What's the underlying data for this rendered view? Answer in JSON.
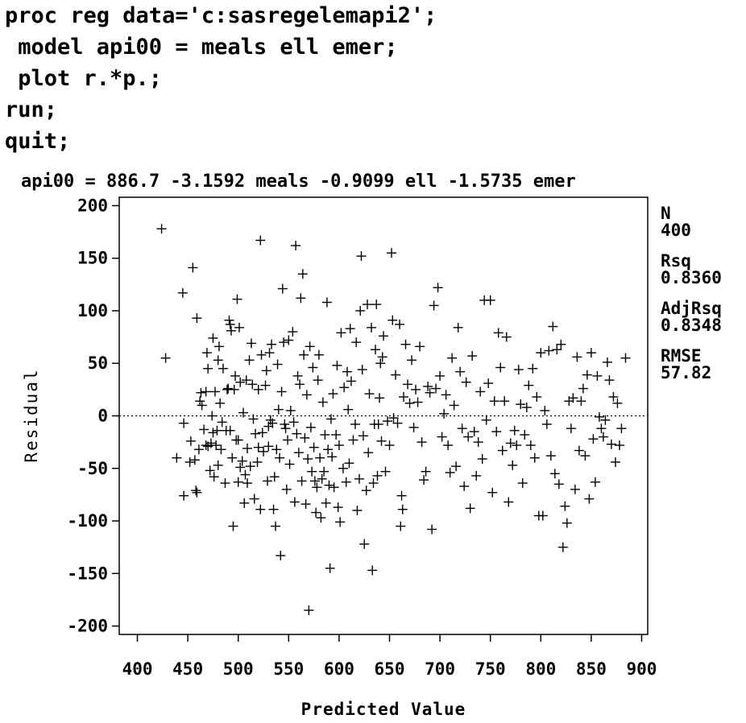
{
  "code_lines": [
    "proc reg data='c:sasregelemapi2';",
    " model api00 = meals ell emer;",
    " plot r.*p.;",
    "run;",
    "quit;"
  ],
  "chart_data": {
    "type": "scatter",
    "title": "api00 = 886.7 -3.1592 meals -0.9099 ell -1.5735 emer",
    "xlabel": "Predicted Value",
    "ylabel": "Residual",
    "xlim": [
      382,
      906
    ],
    "ylim": [
      -208,
      208
    ],
    "xticks": [
      400,
      450,
      500,
      550,
      600,
      650,
      700,
      750,
      800,
      850,
      900
    ],
    "yticks": [
      200,
      150,
      100,
      50,
      0,
      -50,
      -100,
      -150,
      -200
    ],
    "reference_line_y": 0,
    "grid": false,
    "stats": [
      {
        "label": "N",
        "value": "400"
      },
      {
        "label": "Rsq",
        "value": "0.8360"
      },
      {
        "label": "AdjRsq",
        "value": "0.8348"
      },
      {
        "label": "RMSE",
        "value": "57.82"
      }
    ],
    "points": [
      [
        424,
        178
      ],
      [
        428,
        55
      ],
      [
        439,
        -40
      ],
      [
        445,
        117
      ],
      [
        446,
        -7
      ],
      [
        446,
        -76
      ],
      [
        452,
        -44
      ],
      [
        453,
        -24
      ],
      [
        455,
        141
      ],
      [
        457,
        -42
      ],
      [
        458,
        -71
      ],
      [
        459,
        -73
      ],
      [
        459,
        93
      ],
      [
        461,
        -32
      ],
      [
        462,
        14
      ],
      [
        463,
        22
      ],
      [
        464,
        10
      ],
      [
        466,
        -13
      ],
      [
        468,
        23
      ],
      [
        468,
        -28
      ],
      [
        469,
        60
      ],
      [
        470,
        45
      ],
      [
        470,
        -29
      ],
      [
        472,
        -52
      ],
      [
        473,
        -26
      ],
      [
        474,
        0
      ],
      [
        475,
        -16
      ],
      [
        475,
        74
      ],
      [
        476,
        -58
      ],
      [
        477,
        23
      ],
      [
        478,
        -28
      ],
      [
        479,
        -14
      ],
      [
        480,
        -47
      ],
      [
        480,
        53
      ],
      [
        481,
        66
      ],
      [
        482,
        12
      ],
      [
        483,
        -32
      ],
      [
        484,
        -6
      ],
      [
        485,
        45
      ],
      [
        487,
        -64
      ],
      [
        488,
        -14
      ],
      [
        489,
        25
      ],
      [
        490,
        26
      ],
      [
        491,
        91
      ],
      [
        492,
        -14
      ],
      [
        492,
        87
      ],
      [
        493,
        81
      ],
      [
        494,
        -40
      ],
      [
        495,
        -105
      ],
      [
        496,
        25
      ],
      [
        497,
        38
      ],
      [
        498,
        -23
      ],
      [
        499,
        111
      ],
      [
        500,
        -63
      ],
      [
        500,
        -23
      ],
      [
        501,
        84
      ],
      [
        502,
        -49
      ],
      [
        502,
        32
      ],
      [
        504,
        -43
      ],
      [
        505,
        3
      ],
      [
        506,
        -83
      ],
      [
        507,
        -56
      ],
      [
        508,
        34
      ],
      [
        509,
        -31
      ],
      [
        509,
        -64
      ],
      [
        511,
        53
      ],
      [
        512,
        -48
      ],
      [
        513,
        69
      ],
      [
        514,
        30
      ],
      [
        515,
        -3
      ],
      [
        516,
        -79
      ],
      [
        517,
        -17
      ],
      [
        519,
        -44
      ],
      [
        520,
        25
      ],
      [
        520,
        -30
      ],
      [
        522,
        -89
      ],
      [
        522,
        167
      ],
      [
        523,
        58
      ],
      [
        524,
        -16
      ],
      [
        525,
        -34
      ],
      [
        527,
        29
      ],
      [
        528,
        43
      ],
      [
        529,
        -62
      ],
      [
        530,
        -10
      ],
      [
        530,
        -29
      ],
      [
        531,
        60
      ],
      [
        532,
        -4
      ],
      [
        533,
        68
      ],
      [
        534,
        -7
      ],
      [
        535,
        -89
      ],
      [
        536,
        -58
      ],
      [
        537,
        -105
      ],
      [
        538,
        -32
      ],
      [
        539,
        49
      ],
      [
        540,
        6
      ],
      [
        541,
        -40
      ],
      [
        542,
        -133
      ],
      [
        543,
        23
      ],
      [
        544,
        121
      ],
      [
        545,
        70
      ],
      [
        546,
        -8
      ],
      [
        547,
        -12
      ],
      [
        548,
        -70
      ],
      [
        549,
        -23
      ],
      [
        550,
        72
      ],
      [
        551,
        -46
      ],
      [
        552,
        5
      ],
      [
        554,
        80
      ],
      [
        555,
        -6
      ],
      [
        556,
        -82
      ],
      [
        557,
        162
      ],
      [
        558,
        -17
      ],
      [
        559,
        38
      ],
      [
        560,
        -35
      ],
      [
        561,
        30
      ],
      [
        562,
        112
      ],
      [
        563,
        -62
      ],
      [
        564,
        135
      ],
      [
        565,
        58
      ],
      [
        566,
        -21
      ],
      [
        567,
        -84
      ],
      [
        568,
        20
      ],
      [
        569,
        -41
      ],
      [
        570,
        -185
      ],
      [
        571,
        66
      ],
      [
        572,
        -11
      ],
      [
        573,
        -53
      ],
      [
        574,
        46
      ],
      [
        575,
        -30
      ],
      [
        576,
        -62
      ],
      [
        577,
        -92
      ],
      [
        578,
        -68
      ],
      [
        579,
        34
      ],
      [
        580,
        58
      ],
      [
        581,
        -40
      ],
      [
        582,
        -97
      ],
      [
        583,
        -60
      ],
      [
        584,
        13
      ],
      [
        585,
        -53
      ],
      [
        586,
        -18
      ],
      [
        587,
        -83
      ],
      [
        588,
        108
      ],
      [
        589,
        -32
      ],
      [
        590,
        -66
      ],
      [
        591,
        -145
      ],
      [
        592,
        -3
      ],
      [
        593,
        -39
      ],
      [
        594,
        21
      ],
      [
        595,
        -68
      ],
      [
        597,
        -18
      ],
      [
        598,
        48
      ],
      [
        599,
        -87
      ],
      [
        600,
        -28
      ],
      [
        601,
        -101
      ],
      [
        602,
        79
      ],
      [
        604,
        -50
      ],
      [
        605,
        27
      ],
      [
        607,
        -63
      ],
      [
        608,
        42
      ],
      [
        609,
        6
      ],
      [
        610,
        -45
      ],
      [
        611,
        83
      ],
      [
        612,
        33
      ],
      [
        614,
        -23
      ],
      [
        616,
        -8
      ],
      [
        617,
        70
      ],
      [
        618,
        -90
      ],
      [
        620,
        -60
      ],
      [
        621,
        100
      ],
      [
        622,
        152
      ],
      [
        623,
        44
      ],
      [
        624,
        -19
      ],
      [
        625,
        -122
      ],
      [
        627,
        -71
      ],
      [
        628,
        106
      ],
      [
        629,
        -35
      ],
      [
        630,
        21
      ],
      [
        632,
        84
      ],
      [
        633,
        -147
      ],
      [
        634,
        -64
      ],
      [
        635,
        -8
      ],
      [
        636,
        63
      ],
      [
        637,
        106
      ],
      [
        638,
        -57
      ],
      [
        639,
        -8
      ],
      [
        640,
        17
      ],
      [
        641,
        50
      ],
      [
        642,
        -24
      ],
      [
        643,
        56
      ],
      [
        644,
        76
      ],
      [
        646,
        -53
      ],
      [
        648,
        -5
      ],
      [
        650,
        -28
      ],
      [
        652,
        155
      ],
      [
        653,
        91
      ],
      [
        654,
        -2
      ],
      [
        656,
        39
      ],
      [
        658,
        -7
      ],
      [
        660,
        87
      ],
      [
        661,
        -105
      ],
      [
        662,
        -76
      ],
      [
        663,
        -89
      ],
      [
        664,
        18
      ],
      [
        666,
        68
      ],
      [
        668,
        30
      ],
      [
        670,
        12
      ],
      [
        672,
        53
      ],
      [
        674,
        -11
      ],
      [
        676,
        25
      ],
      [
        678,
        13
      ],
      [
        680,
        66
      ],
      [
        682,
        -25
      ],
      [
        684,
        -61
      ],
      [
        686,
        -53
      ],
      [
        688,
        28
      ],
      [
        690,
        22
      ],
      [
        692,
        -108
      ],
      [
        694,
        105
      ],
      [
        696,
        26
      ],
      [
        698,
        122
      ],
      [
        700,
        38
      ],
      [
        702,
        -20
      ],
      [
        704,
        2
      ],
      [
        706,
        20
      ],
      [
        708,
        -28
      ],
      [
        710,
        -54
      ],
      [
        712,
        55
      ],
      [
        714,
        10
      ],
      [
        716,
        -48
      ],
      [
        718,
        84
      ],
      [
        720,
        42
      ],
      [
        722,
        -12
      ],
      [
        724,
        -67
      ],
      [
        726,
        32
      ],
      [
        728,
        -20
      ],
      [
        730,
        -88
      ],
      [
        732,
        57
      ],
      [
        734,
        -15
      ],
      [
        736,
        -57
      ],
      [
        738,
        -25
      ],
      [
        740,
        23
      ],
      [
        742,
        -41
      ],
      [
        744,
        110
      ],
      [
        746,
        -4
      ],
      [
        748,
        31
      ],
      [
        750,
        110
      ],
      [
        752,
        -73
      ],
      [
        754,
        14
      ],
      [
        756,
        -15
      ],
      [
        758,
        79
      ],
      [
        760,
        46
      ],
      [
        762,
        -33
      ],
      [
        764,
        14
      ],
      [
        766,
        75
      ],
      [
        768,
        -82
      ],
      [
        770,
        -26
      ],
      [
        772,
        -47
      ],
      [
        774,
        -14
      ],
      [
        776,
        -28
      ],
      [
        778,
        44
      ],
      [
        780,
        11
      ],
      [
        782,
        -64
      ],
      [
        784,
        -18
      ],
      [
        786,
        8
      ],
      [
        788,
        29
      ],
      [
        790,
        -28
      ],
      [
        792,
        45
      ],
      [
        794,
        -40
      ],
      [
        796,
        18
      ],
      [
        798,
        -95
      ],
      [
        800,
        60
      ],
      [
        802,
        -95
      ],
      [
        804,
        5
      ],
      [
        806,
        -8
      ],
      [
        808,
        62
      ],
      [
        810,
        -38
      ],
      [
        812,
        85
      ],
      [
        814,
        -55
      ],
      [
        816,
        63
      ],
      [
        818,
        -65
      ],
      [
        820,
        68
      ],
      [
        822,
        -125
      ],
      [
        824,
        -86
      ],
      [
        826,
        -102
      ],
      [
        828,
        14
      ],
      [
        830,
        -12
      ],
      [
        832,
        17
      ],
      [
        834,
        -70
      ],
      [
        836,
        56
      ],
      [
        838,
        -33
      ],
      [
        840,
        14
      ],
      [
        842,
        26
      ],
      [
        844,
        -38
      ],
      [
        846,
        39
      ],
      [
        848,
        -79
      ],
      [
        850,
        60
      ],
      [
        852,
        -22
      ],
      [
        854,
        -63
      ],
      [
        856,
        38
      ],
      [
        858,
        -1
      ],
      [
        860,
        -12
      ],
      [
        862,
        -20
      ],
      [
        864,
        -4
      ],
      [
        866,
        51
      ],
      [
        868,
        34
      ],
      [
        870,
        -27
      ],
      [
        872,
        18
      ],
      [
        874,
        -44
      ],
      [
        876,
        12
      ],
      [
        878,
        -28
      ],
      [
        880,
        -12
      ],
      [
        884,
        55
      ]
    ]
  }
}
